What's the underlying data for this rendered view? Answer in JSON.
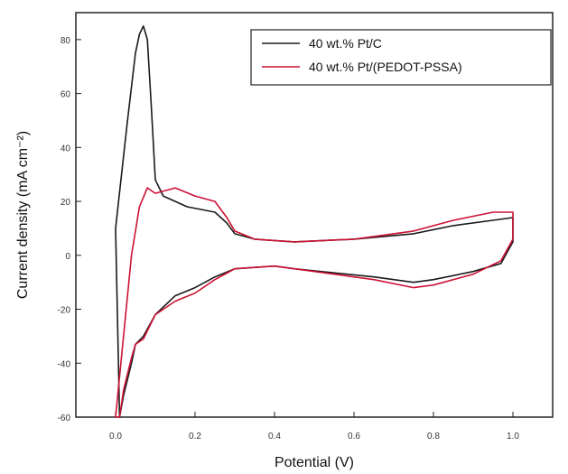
{
  "chart_data": {
    "type": "line",
    "xlabel": "Potential (V)",
    "ylabel": "Current density (mA cm⁻²)",
    "xlim": [
      -0.1,
      1.1
    ],
    "ylim": [
      -60,
      90
    ],
    "xticks": [
      "0.0",
      "0.2",
      "0.4",
      "0.6",
      "0.8",
      "1.0"
    ],
    "yticks": [
      "-60",
      "-40",
      "-20",
      "0",
      "20",
      "40",
      "60",
      "80"
    ],
    "legend_position": "top-right",
    "series": [
      {
        "name": "40 wt.% Pt/C",
        "color": "#1a1a1a",
        "x": [
          0.0,
          0.03,
          0.05,
          0.06,
          0.07,
          0.08,
          0.09,
          0.1,
          0.12,
          0.18,
          0.25,
          0.28,
          0.3,
          0.35,
          0.45,
          0.6,
          0.75,
          0.85,
          0.95,
          1.0,
          1.0,
          0.97,
          0.9,
          0.8,
          0.75,
          0.65,
          0.45,
          0.4,
          0.3,
          0.25,
          0.2,
          0.15,
          0.1,
          0.07,
          0.05,
          0.04,
          0.02,
          0.01
        ],
        "y": [
          10,
          50,
          75,
          82,
          85,
          80,
          55,
          28,
          22,
          18,
          16,
          12,
          8,
          6,
          5,
          6,
          8,
          11,
          13,
          14,
          5,
          -3,
          -6,
          -9,
          -10,
          -8,
          -5,
          -4,
          -5,
          -8,
          -12,
          -15,
          -22,
          -30,
          -33,
          -40,
          -52,
          -60
        ]
      },
      {
        "name": "40 wt.% Pt/(PEDOT-PSSA)",
        "color": "#cc1133",
        "x": [
          0.0,
          0.02,
          0.04,
          0.06,
          0.08,
          0.1,
          0.15,
          0.2,
          0.25,
          0.28,
          0.3,
          0.35,
          0.45,
          0.6,
          0.75,
          0.85,
          0.95,
          1.0,
          1.0,
          0.97,
          0.9,
          0.8,
          0.75,
          0.65,
          0.45,
          0.4,
          0.3,
          0.25,
          0.2,
          0.15,
          0.1,
          0.07,
          0.05,
          0.04,
          0.02,
          0.01
        ],
        "y": [
          -60,
          -30,
          0,
          18,
          25,
          23,
          25,
          22,
          20,
          14,
          9,
          6,
          5,
          6,
          9,
          13,
          16,
          16,
          6,
          -2,
          -7,
          -11,
          -12,
          -9,
          -5,
          -4,
          -5,
          -9,
          -14,
          -17,
          -22,
          -31,
          -33,
          -38,
          -50,
          -60
        ]
      }
    ]
  }
}
